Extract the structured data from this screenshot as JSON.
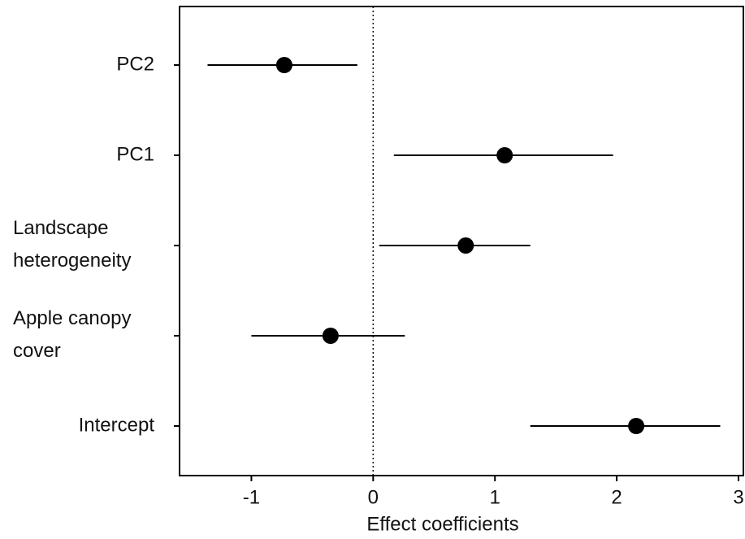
{
  "chart_data": {
    "type": "coefficient",
    "categories": [
      "PC2",
      "PC1",
      "Landscape\nheterogeneity",
      "Apple canopy\ncover",
      "Intercept"
    ],
    "values": [
      -0.73,
      1.08,
      0.76,
      -0.35,
      2.16
    ],
    "lower": [
      -1.36,
      0.17,
      0.05,
      -1.0,
      1.29
    ],
    "upper": [
      -0.13,
      1.97,
      1.29,
      0.26,
      2.85
    ],
    "color": "#000000",
    "xlabel": "Effect coefficients",
    "xlim": [
      -1.59,
      3.04
    ],
    "xticks": [
      -1,
      0,
      1,
      2,
      3
    ],
    "reference_line": 0
  }
}
